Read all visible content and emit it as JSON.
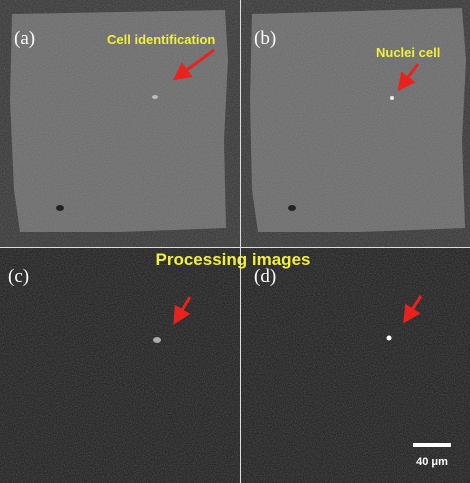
{
  "panels": [
    {
      "label": "(a)",
      "annotation": "Cell identification"
    },
    {
      "label": "(b)",
      "annotation": "Nuclei cell"
    },
    {
      "label": "(c)"
    },
    {
      "label": "(d)"
    }
  ],
  "caption": "Processing images",
  "scale_bar": "40 μm"
}
